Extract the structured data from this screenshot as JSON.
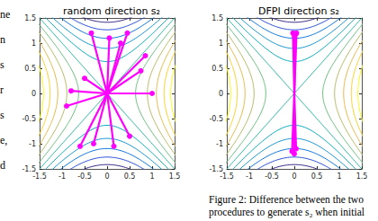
{
  "chart_data": [
    {
      "type": "line",
      "title": "random direction s₂",
      "xlim": [
        -1.5,
        1.5
      ],
      "ylim": [
        -1.5,
        1.5
      ],
      "xticks": [
        -1.5,
        -1,
        -0.5,
        0,
        0.5,
        1,
        1.5
      ],
      "yticks": [
        -1.5,
        -1,
        -0.5,
        0,
        0.5,
        1,
        1.5
      ],
      "contours": {
        "levels": [
          -2,
          -1.6,
          -1.2,
          -0.8,
          -0.4,
          0,
          0.4,
          0.8,
          1.2,
          1.6,
          2
        ],
        "colors": [
          "#352a87",
          "#2b4fd9",
          "#0d75dc",
          "#1496d0",
          "#09acbf",
          "#2bbba0",
          "#6cc17e",
          "#b4bd64",
          "#e6b94a",
          "#fcd02c",
          "#f9fb0e"
        ]
      },
      "rays": {
        "color": "#ff00ff",
        "marker": "circle",
        "origin": [
          0,
          0
        ],
        "x": [
          -0.35,
          0.05,
          0.45,
          0.3,
          0.85,
          0.75,
          1.0,
          -0.8,
          -0.9,
          -0.6,
          -0.3,
          0.15,
          0.5,
          -0.5
        ],
        "y": [
          1.2,
          1.1,
          1.2,
          1.0,
          0.75,
          0.45,
          0.0,
          0.05,
          -0.25,
          -1.05,
          -1.0,
          -1.05,
          -0.85,
          0.3
        ]
      }
    },
    {
      "type": "line",
      "title": "DFPI direction s₂",
      "xlim": [
        -1.5,
        1.5
      ],
      "ylim": [
        -1.5,
        1.5
      ],
      "xticks": [
        -1.5,
        -1,
        -0.5,
        0,
        0.5,
        1,
        1.5
      ],
      "yticks": [
        -1.5,
        -1,
        -0.5,
        0,
        0.5,
        1,
        1.5
      ],
      "contours": {
        "levels": [
          -2,
          -1.6,
          -1.2,
          -0.8,
          -0.4,
          0,
          0.4,
          0.8,
          1.2,
          1.6,
          2
        ],
        "colors": [
          "#352a87",
          "#2b4fd9",
          "#0d75dc",
          "#1496d0",
          "#09acbf",
          "#2bbba0",
          "#6cc17e",
          "#b4bd64",
          "#e6b94a",
          "#fcd02c",
          "#f9fb0e"
        ]
      },
      "rays": {
        "color": "#ff00ff",
        "marker": "circle",
        "origin": [
          0,
          0
        ],
        "x": [
          -0.03,
          0.03,
          0.0,
          0.05,
          -0.05,
          0.04,
          0.0
        ],
        "y": [
          1.2,
          1.18,
          1.15,
          1.2,
          -1.15,
          -1.1,
          -1.2
        ]
      }
    }
  ],
  "caption": [
    "Figure 2: Difference between the two",
    "procedures to generate s₂ when initial"
  ],
  "margin_text": [
    "ne",
    "n",
    "s",
    "r",
    "s",
    "e,",
    "d"
  ]
}
